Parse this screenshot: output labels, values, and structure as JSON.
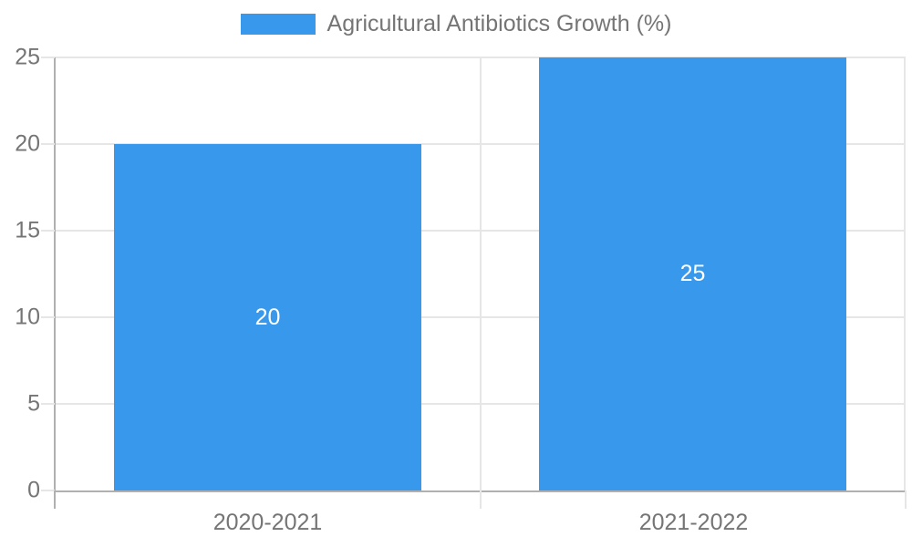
{
  "legend": {
    "label": "Agricultural Antibiotics Growth (%)"
  },
  "chart_data": {
    "type": "bar",
    "title": "",
    "xlabel": "",
    "ylabel": "",
    "categories": [
      "2020-2021",
      "2021-2022"
    ],
    "values": [
      20,
      25
    ],
    "series_name": "Agricultural Antibiotics Growth (%)",
    "data_labels": [
      "20",
      "25"
    ],
    "ylim": [
      0,
      25
    ],
    "yticks": [
      0,
      5,
      10,
      15,
      20,
      25
    ],
    "grid": true,
    "legend_position": "top-center"
  },
  "colors": {
    "bar": "#3899EC",
    "gridline": "#e6e6e6",
    "axis": "#b0b0b0",
    "text": "#757575",
    "bar_label": "#ffffff",
    "background": "#ffffff"
  }
}
